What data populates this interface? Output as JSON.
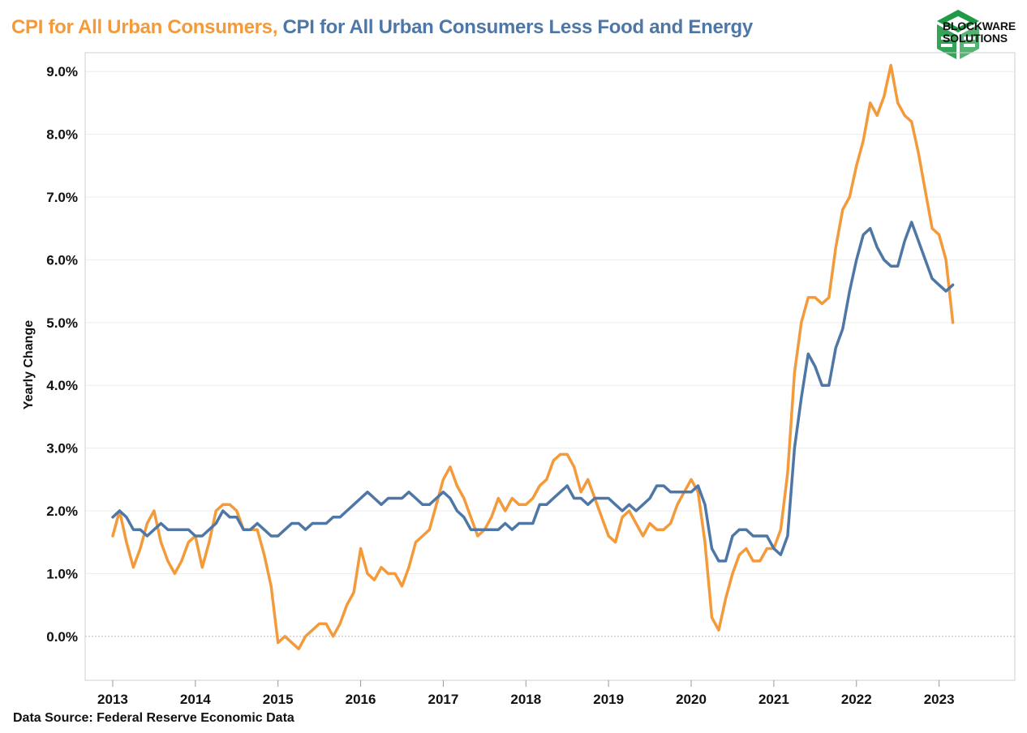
{
  "title": {
    "part1": "CPI for All Urban Consumers,",
    "part2": " CPI for All Urban Consumers Less Food and Energy"
  },
  "logo": {
    "line1": "BLOCKWARE",
    "line2": "SOLUTIONS",
    "color": "#1f9a46"
  },
  "source": "Data Source: Federal Reserve Economic Data",
  "colors": {
    "headline": "#f39a3b",
    "core": "#4f77a6",
    "grid": "#ececec",
    "axis": "#cfcfcf"
  },
  "chart_data": {
    "type": "line",
    "xlabel": "",
    "ylabel": "Yearly Change",
    "x_start": "2013-01",
    "x_frequency": "monthly",
    "xlim": [
      "2012-09",
      "2023-12"
    ],
    "ylim": [
      -0.7,
      9.3
    ],
    "y_ticks": [
      "0.0%",
      "1.0%",
      "2.0%",
      "3.0%",
      "4.0%",
      "5.0%",
      "6.0%",
      "7.0%",
      "8.0%",
      "9.0%"
    ],
    "x_ticks": [
      "2013",
      "2014",
      "2015",
      "2016",
      "2017",
      "2018",
      "2019",
      "2020",
      "2021",
      "2022",
      "2023"
    ],
    "grid": true,
    "series": [
      {
        "name": "CPI for All Urban Consumers",
        "color": "#f39a3b",
        "values": [
          1.6,
          2.0,
          1.5,
          1.1,
          1.4,
          1.8,
          2.0,
          1.5,
          1.2,
          1.0,
          1.2,
          1.5,
          1.6,
          1.1,
          1.5,
          2.0,
          2.1,
          2.1,
          2.0,
          1.7,
          1.7,
          1.7,
          1.3,
          0.8,
          -0.1,
          0.0,
          -0.1,
          -0.2,
          0.0,
          0.1,
          0.2,
          0.2,
          0.0,
          0.2,
          0.5,
          0.7,
          1.4,
          1.0,
          0.9,
          1.1,
          1.0,
          1.0,
          0.8,
          1.1,
          1.5,
          1.6,
          1.7,
          2.1,
          2.5,
          2.7,
          2.4,
          2.2,
          1.9,
          1.6,
          1.7,
          1.9,
          2.2,
          2.0,
          2.2,
          2.1,
          2.1,
          2.2,
          2.4,
          2.5,
          2.8,
          2.9,
          2.9,
          2.7,
          2.3,
          2.5,
          2.2,
          1.9,
          1.6,
          1.5,
          1.9,
          2.0,
          1.8,
          1.6,
          1.8,
          1.7,
          1.7,
          1.8,
          2.1,
          2.3,
          2.5,
          2.3,
          1.5,
          0.3,
          0.1,
          0.6,
          1.0,
          1.3,
          1.4,
          1.2,
          1.2,
          1.4,
          1.4,
          1.7,
          2.6,
          4.2,
          5.0,
          5.4,
          5.4,
          5.3,
          5.4,
          6.2,
          6.8,
          7.0,
          7.5,
          7.9,
          8.5,
          8.3,
          8.6,
          9.1,
          8.5,
          8.3,
          8.2,
          7.7,
          7.1,
          6.5,
          6.4,
          6.0,
          5.0
        ]
      },
      {
        "name": "CPI for All Urban Consumers Less Food and Energy",
        "color": "#4f77a6",
        "values": [
          1.9,
          2.0,
          1.9,
          1.7,
          1.7,
          1.6,
          1.7,
          1.8,
          1.7,
          1.7,
          1.7,
          1.7,
          1.6,
          1.6,
          1.7,
          1.8,
          2.0,
          1.9,
          1.9,
          1.7,
          1.7,
          1.8,
          1.7,
          1.6,
          1.6,
          1.7,
          1.8,
          1.8,
          1.7,
          1.8,
          1.8,
          1.8,
          1.9,
          1.9,
          2.0,
          2.1,
          2.2,
          2.3,
          2.2,
          2.1,
          2.2,
          2.2,
          2.2,
          2.3,
          2.2,
          2.1,
          2.1,
          2.2,
          2.3,
          2.2,
          2.0,
          1.9,
          1.7,
          1.7,
          1.7,
          1.7,
          1.7,
          1.8,
          1.7,
          1.8,
          1.8,
          1.8,
          2.1,
          2.1,
          2.2,
          2.3,
          2.4,
          2.2,
          2.2,
          2.1,
          2.2,
          2.2,
          2.2,
          2.1,
          2.0,
          2.1,
          2.0,
          2.1,
          2.2,
          2.4,
          2.4,
          2.3,
          2.3,
          2.3,
          2.3,
          2.4,
          2.1,
          1.4,
          1.2,
          1.2,
          1.6,
          1.7,
          1.7,
          1.6,
          1.6,
          1.6,
          1.4,
          1.3,
          1.6,
          3.0,
          3.8,
          4.5,
          4.3,
          4.0,
          4.0,
          4.6,
          4.9,
          5.5,
          6.0,
          6.4,
          6.5,
          6.2,
          6.0,
          5.9,
          5.9,
          6.3,
          6.6,
          6.3,
          6.0,
          5.7,
          5.6,
          5.5,
          5.6
        ]
      }
    ]
  }
}
